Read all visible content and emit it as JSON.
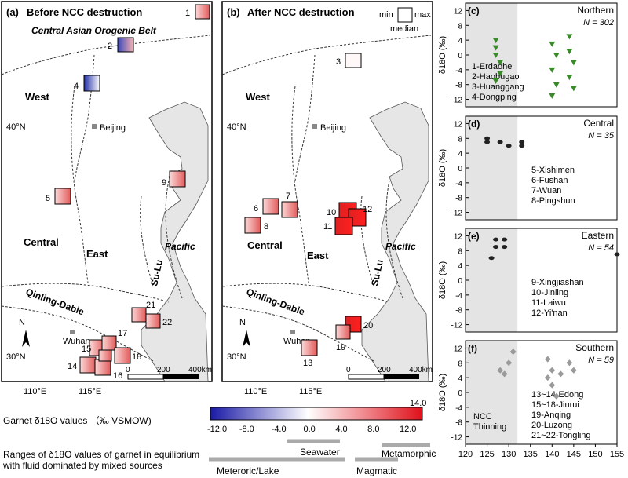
{
  "panels": {
    "a": {
      "label": "(a)",
      "title": "Before NCC destruction",
      "subtitle": "Central Asian Orogenic Belt"
    },
    "b": {
      "label": "(b)",
      "title": "After NCC destruction"
    },
    "c": {
      "label": "(c)",
      "region": "Northern",
      "n": "N = 302",
      "sites": [
        "1-Erdaohe",
        "2-Haobugao",
        "3-Huanggang",
        "4-Dongping"
      ]
    },
    "d": {
      "label": "(d)",
      "region": "Central",
      "n": "N = 35",
      "sites": [
        "5-Xishimen",
        "6-Fushan",
        "7-Wuan",
        "8-Pingshun"
      ]
    },
    "e": {
      "label": "(e)",
      "region": "Eastern",
      "n": "N = 54",
      "sites": [
        "9-Xingjiashan",
        "10-Jinling",
        "11-Laiwu",
        "12-Yi'nan"
      ]
    },
    "f": {
      "label": "(f)",
      "region": "Southern",
      "n": "N = 59",
      "sites": [
        "13~14-Edong",
        "15~18-Jiurui",
        "19-Anqing",
        "20-Luzong",
        "21~22-Tongling"
      ],
      "thinning": [
        "NCC",
        "Thinning"
      ]
    }
  },
  "map_labels": {
    "west": "West",
    "central": "Central",
    "east": "East",
    "sulu": "Su-Lu",
    "pacific": "Pacific",
    "qinling": "Qinling-Dabie",
    "beijing": "Beijing",
    "wuhan": "Wuhan",
    "lat40": "40°N",
    "lat30": "30°N",
    "lon110": "110°E",
    "lon115": "115°E",
    "north": "N",
    "scale": [
      "0",
      "200",
      "400km"
    ]
  },
  "box_legend": {
    "min": "min",
    "max": "max",
    "median": "median"
  },
  "map_a_sites": [
    "1",
    "2",
    "4",
    "5",
    "9",
    "21",
    "22",
    "15",
    "17",
    "18",
    "14",
    "16"
  ],
  "map_b_sites": [
    "3",
    "6",
    "7",
    "8",
    "10",
    "12",
    "11",
    "20",
    "19",
    "13"
  ],
  "colorbar": {
    "label": "Garnet δ18O values （‰ VSMOW)",
    "max_label": "14.0",
    "ticks": [
      "-12.0",
      "-8.0",
      "-4.0",
      "0.0",
      "4.0",
      "8.0",
      "12.0"
    ],
    "colors": {
      "low": "#1a1aa6",
      "mid": "#ffffff",
      "high": "#e0101a"
    }
  },
  "ranges": {
    "caption_line1": "Ranges of δ18O values of garnet in equilibrium",
    "caption_line2": "with fluid dominated by mixed sources",
    "seawater": "Seawater",
    "metamorphic": "Metamorphic",
    "meteoric": "Meteroric/Lake",
    "magmatic": "Magmatic"
  },
  "chart_data": {
    "type": "scatter",
    "ylabel": "δ18O (‰)",
    "y_ticks": [
      "12",
      "8",
      "4",
      "0",
      "-4",
      "-8",
      "-12"
    ],
    "x_ticks": [
      "120",
      "125",
      "130",
      "135",
      "140",
      "145",
      "150",
      "155"
    ],
    "xlabel_range": [
      120,
      155
    ],
    "ylim": [
      -14,
      14
    ],
    "panels": [
      {
        "panel": "c",
        "color": "#3a8a2a",
        "points": [
          [
            127,
            4
          ],
          [
            127,
            2
          ],
          [
            127,
            0
          ],
          [
            128,
            -2
          ],
          [
            128,
            -5
          ],
          [
            127,
            -7
          ],
          [
            140,
            3
          ],
          [
            141,
            0
          ],
          [
            140,
            -4
          ],
          [
            141,
            -8
          ],
          [
            140,
            -11
          ],
          [
            144,
            5
          ],
          [
            144,
            1
          ],
          [
            145,
            -2
          ],
          [
            144,
            -6
          ],
          [
            145,
            -9
          ]
        ]
      },
      {
        "panel": "d",
        "color": "#222222",
        "points": [
          [
            125,
            8
          ],
          [
            125,
            7
          ],
          [
            128,
            7
          ],
          [
            130,
            6
          ],
          [
            133,
            7
          ],
          [
            133,
            6
          ]
        ]
      },
      {
        "panel": "e",
        "color": "#222222",
        "points": [
          [
            126,
            6
          ],
          [
            127,
            9
          ],
          [
            127,
            11
          ],
          [
            129,
            9
          ],
          [
            129,
            11
          ],
          [
            155,
            7
          ]
        ]
      },
      {
        "panel": "f",
        "color": "#9a9a9a",
        "points": [
          [
            131,
            11
          ],
          [
            130,
            8
          ],
          [
            129,
            5
          ],
          [
            128,
            6
          ],
          [
            139,
            9
          ],
          [
            140,
            6
          ],
          [
            140,
            2
          ],
          [
            141,
            -1
          ],
          [
            139,
            4
          ],
          [
            144,
            8
          ],
          [
            145,
            6
          ],
          [
            142,
            5
          ]
        ]
      }
    ]
  }
}
